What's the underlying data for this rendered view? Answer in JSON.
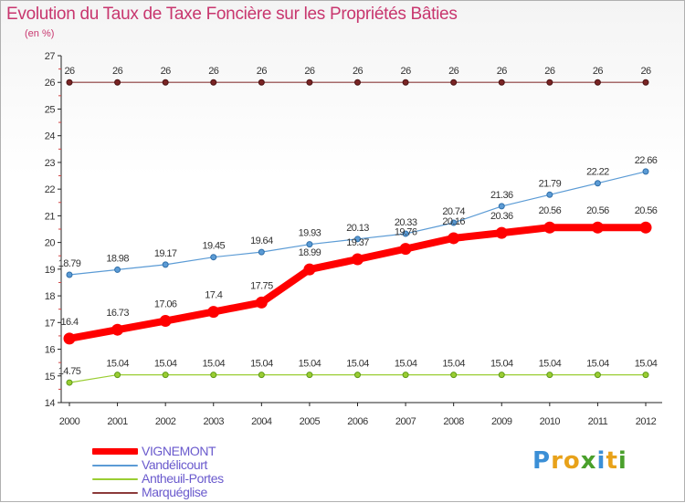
{
  "header": {
    "title": "Evolution du Taux de Taxe Foncière sur les Propriétés Bâties",
    "unit": "(en %)"
  },
  "logo": {
    "letters": [
      "P",
      "r",
      "o",
      "x",
      "i",
      "t",
      "i"
    ],
    "colors": [
      "#3b8fd6",
      "#e8a21a",
      "#e8a21a",
      "#4aa02c",
      "#3b8fd6",
      "#e8a21a",
      "#4aa02c"
    ]
  },
  "chart_data": {
    "type": "line",
    "title": "Evolution du Taux de Taxe Foncière sur les Propriétés Bâties",
    "ylabel": "(en %)",
    "x": [
      "2000",
      "2001",
      "2002",
      "2003",
      "2004",
      "2005",
      "2006",
      "2007",
      "2008",
      "2009",
      "2010",
      "2011",
      "2012"
    ],
    "ylim": [
      14,
      27
    ],
    "yticks": [
      14,
      15,
      16,
      17,
      18,
      19,
      20,
      21,
      22,
      23,
      24,
      25,
      26,
      27
    ],
    "grid": false,
    "legend_position": "bottom-left",
    "series": [
      {
        "name": "VIGNEMONT",
        "color": "#ff0000",
        "values": [
          16.4,
          16.73,
          17.06,
          17.4,
          17.75,
          18.99,
          19.37,
          19.76,
          20.16,
          20.36,
          20.56,
          20.56,
          20.56
        ],
        "labels": [
          "16.4",
          "16.73",
          "17.06",
          "17.4",
          "17.75",
          "18.99",
          "19.37",
          "19.76",
          "20.16",
          "20.36",
          "20.56",
          "20.56",
          "20.56"
        ]
      },
      {
        "name": "Vandélicourt",
        "color": "#5b9bd5",
        "values": [
          18.79,
          18.98,
          19.17,
          19.45,
          19.64,
          19.93,
          20.13,
          20.33,
          20.74,
          21.36,
          21.79,
          22.22,
          22.66
        ],
        "labels": [
          "18.79",
          "18.98",
          "19.17",
          "19.45",
          "19.64",
          "19.93",
          "20.13",
          "20.33",
          "20.74",
          "21.36",
          "21.79",
          "22.22",
          "22.66"
        ]
      },
      {
        "name": "Antheuil-Portes",
        "color": "#9acd32",
        "values": [
          14.75,
          15.04,
          15.04,
          15.04,
          15.04,
          15.04,
          15.04,
          15.04,
          15.04,
          15.04,
          15.04,
          15.04,
          15.04
        ],
        "labels": [
          "14.75",
          "15.04",
          "15.04",
          "15.04",
          "15.04",
          "15.04",
          "15.04",
          "15.04",
          "15.04",
          "15.04",
          "15.04",
          "15.04",
          "15.04"
        ]
      },
      {
        "name": "Marquéglise",
        "color": "#8b3a3a",
        "values": [
          26,
          26,
          26,
          26,
          26,
          26,
          26,
          26,
          26,
          26,
          26,
          26,
          26
        ],
        "labels": [
          "26",
          "26",
          "26",
          "26",
          "26",
          "26",
          "26",
          "26",
          "26",
          "26",
          "26",
          "26",
          "26"
        ]
      }
    ]
  }
}
